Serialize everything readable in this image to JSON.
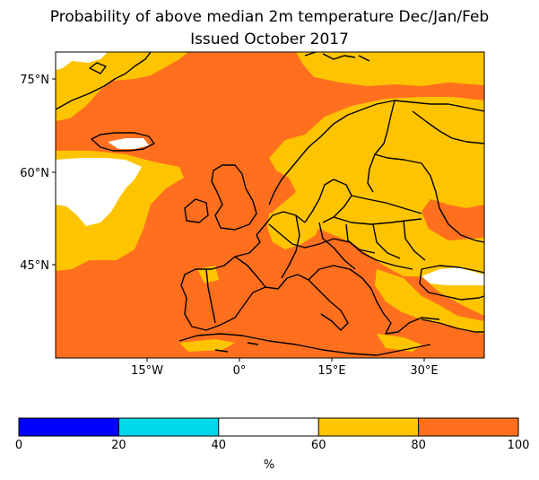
{
  "title": {
    "line1": "Probability of above median 2m temperature Dec/Jan/Feb",
    "line2": "Issued October 2017"
  },
  "map": {
    "lat_ticks": [
      "75°N",
      "60°N",
      "45°N"
    ],
    "lon_ticks": [
      "15°W",
      "0°",
      "15°E",
      "30°E"
    ]
  },
  "colorbar": {
    "ticks": [
      "0",
      "20",
      "40",
      "60",
      "80",
      "100"
    ],
    "unit": "%",
    "bins": [
      {
        "from": 0,
        "to": 20,
        "color": "#0000ff"
      },
      {
        "from": 20,
        "to": 40,
        "color": "#00d7e8"
      },
      {
        "from": 40,
        "to": 60,
        "color": "#ffffff"
      },
      {
        "from": 60,
        "to": 80,
        "color": "#ffc400"
      },
      {
        "from": 80,
        "to": 100,
        "color": "#ff6f1e"
      }
    ]
  },
  "colors": {
    "orange": "#ff6f1e",
    "yellow": "#ffc400",
    "white": "#ffffff",
    "coast": "#000000"
  }
}
